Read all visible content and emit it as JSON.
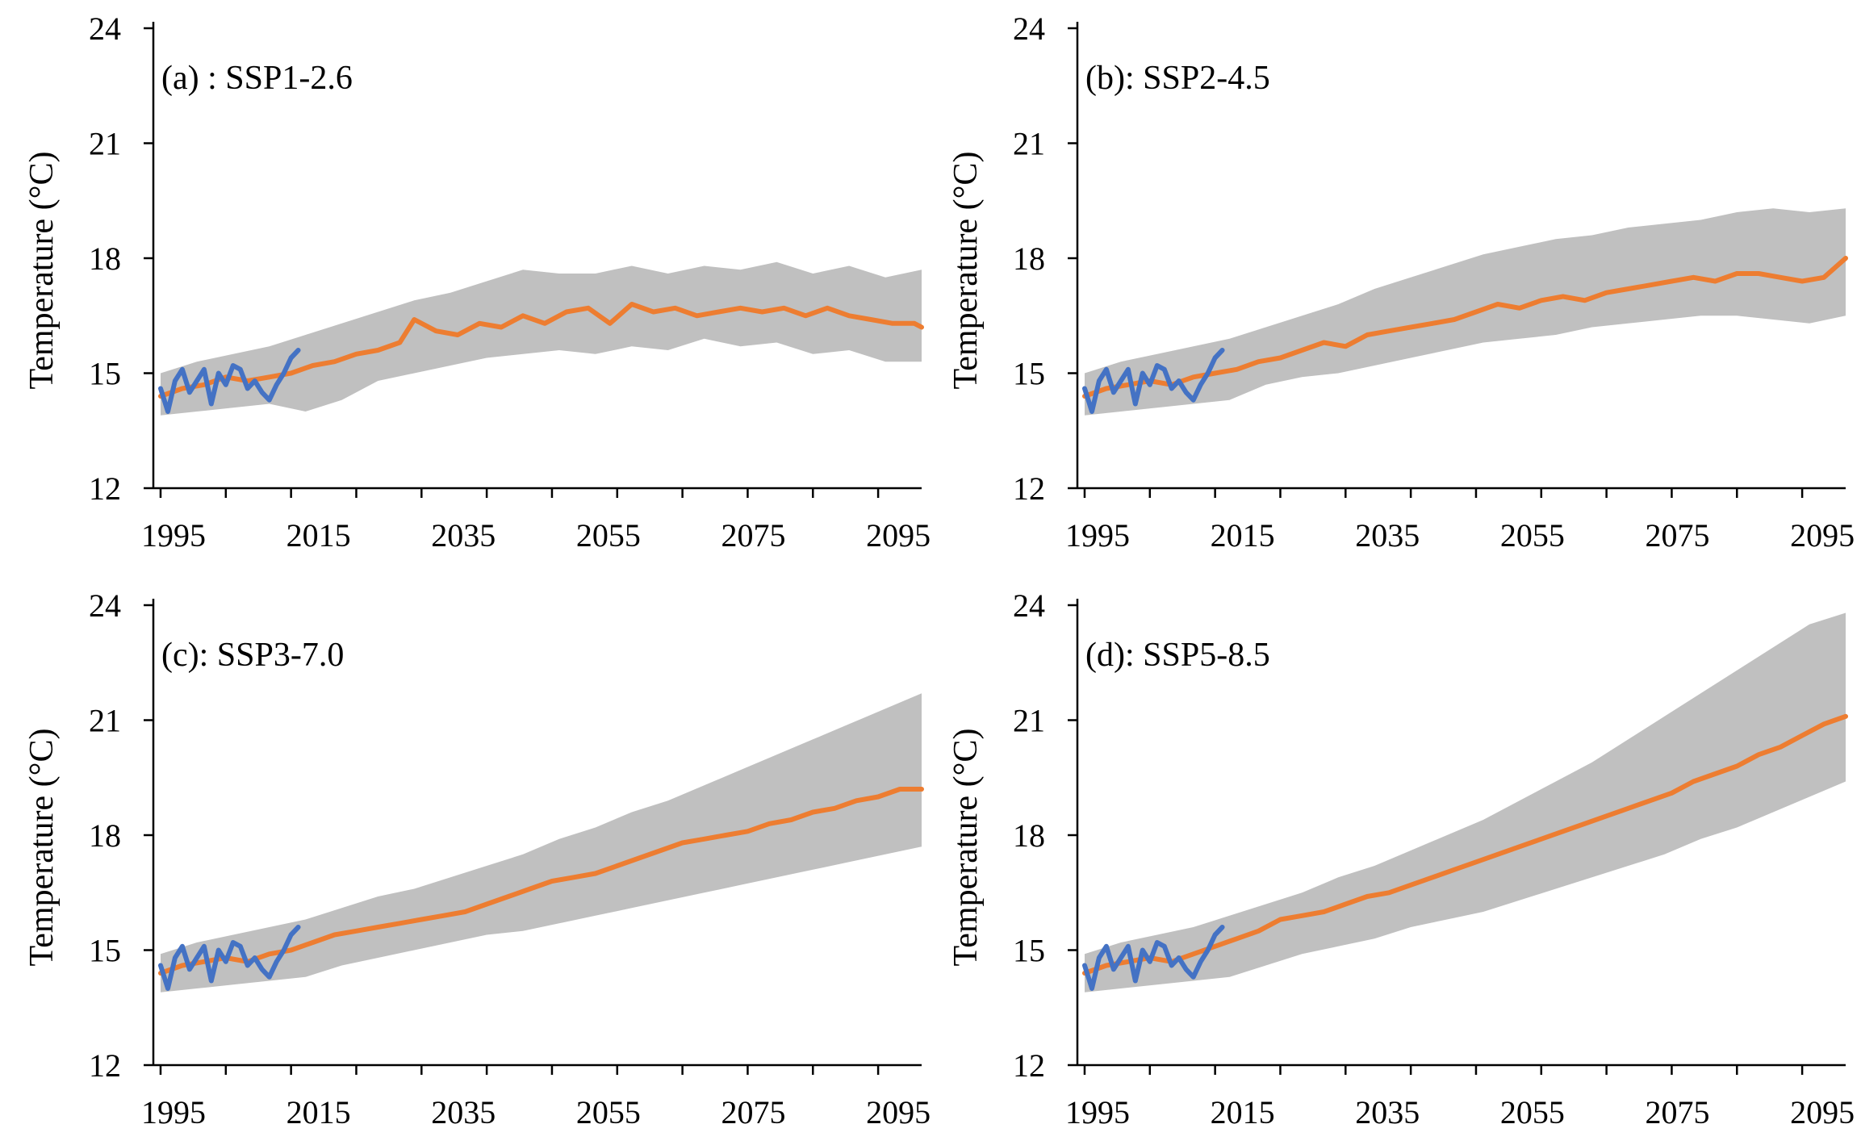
{
  "colors": {
    "band": "#c0c0c0",
    "projection": "#ed7d31",
    "observed": "#4472c4",
    "axis": "#000000"
  },
  "chart_data": [
    {
      "type": "line",
      "title": "(a) : SSP1-2.6",
      "xlabel": "",
      "ylabel": "Temperature (°C)",
      "xlim": [
        1994,
        2100
      ],
      "ylim": [
        12,
        24
      ],
      "xticks": [
        1995,
        2015,
        2035,
        2055,
        2075,
        2095
      ],
      "yticks": [
        12,
        15,
        18,
        21,
        24
      ],
      "grid": false,
      "series": [
        {
          "role": "band",
          "x": [
            1995,
            2000,
            2005,
            2010,
            2015,
            2020,
            2025,
            2030,
            2035,
            2040,
            2045,
            2050,
            2055,
            2060,
            2065,
            2070,
            2075,
            2080,
            2085,
            2090,
            2095,
            2100
          ],
          "upper": [
            15.0,
            15.3,
            15.5,
            15.7,
            16.0,
            16.3,
            16.6,
            16.9,
            17.1,
            17.4,
            17.7,
            17.6,
            17.6,
            17.8,
            17.6,
            17.8,
            17.7,
            17.9,
            17.6,
            17.8,
            17.5,
            17.7
          ],
          "lower": [
            13.9,
            14.0,
            14.1,
            14.2,
            14.0,
            14.3,
            14.8,
            15.0,
            15.2,
            15.4,
            15.5,
            15.6,
            15.5,
            15.7,
            15.6,
            15.9,
            15.7,
            15.8,
            15.5,
            15.6,
            15.3,
            15.3
          ]
        },
        {
          "role": "projection",
          "x": [
            1995,
            1998,
            2001,
            2004,
            2007,
            2010,
            2013,
            2016,
            2019,
            2022,
            2025,
            2028,
            2030,
            2033,
            2036,
            2039,
            2042,
            2045,
            2048,
            2051,
            2054,
            2057,
            2060,
            2063,
            2066,
            2069,
            2072,
            2075,
            2078,
            2081,
            2084,
            2087,
            2090,
            2093,
            2096,
            2099,
            2100
          ],
          "values": [
            14.4,
            14.6,
            14.7,
            14.9,
            14.8,
            14.9,
            15.0,
            15.2,
            15.3,
            15.5,
            15.6,
            15.8,
            16.4,
            16.1,
            16.0,
            16.3,
            16.2,
            16.5,
            16.3,
            16.6,
            16.7,
            16.3,
            16.8,
            16.6,
            16.7,
            16.5,
            16.6,
            16.7,
            16.6,
            16.7,
            16.5,
            16.7,
            16.5,
            16.4,
            16.3,
            16.3,
            16.2
          ]
        },
        {
          "role": "observed",
          "x": [
            1995,
            1996,
            1997,
            1998,
            1999,
            2000,
            2001,
            2002,
            2003,
            2004,
            2005,
            2006,
            2007,
            2008,
            2009,
            2010,
            2011,
            2012,
            2013,
            2014
          ],
          "values": [
            14.6,
            14.0,
            14.8,
            15.1,
            14.5,
            14.8,
            15.1,
            14.2,
            15.0,
            14.7,
            15.2,
            15.1,
            14.6,
            14.8,
            14.5,
            14.3,
            14.7,
            15.0,
            15.4,
            15.6
          ]
        }
      ]
    },
    {
      "type": "line",
      "title": "(b): SSP2-4.5",
      "xlabel": "",
      "ylabel": "Temperature (°C)",
      "xlim": [
        1994,
        2100
      ],
      "ylim": [
        12,
        24
      ],
      "xticks": [
        1995,
        2015,
        2035,
        2055,
        2075,
        2095
      ],
      "yticks": [
        12,
        15,
        18,
        21,
        24
      ],
      "grid": false,
      "series": [
        {
          "role": "band",
          "x": [
            1995,
            2000,
            2005,
            2010,
            2015,
            2020,
            2025,
            2030,
            2035,
            2040,
            2045,
            2050,
            2055,
            2060,
            2065,
            2070,
            2075,
            2080,
            2085,
            2090,
            2095,
            2100
          ],
          "upper": [
            15.0,
            15.3,
            15.5,
            15.7,
            15.9,
            16.2,
            16.5,
            16.8,
            17.2,
            17.5,
            17.8,
            18.1,
            18.3,
            18.5,
            18.6,
            18.8,
            18.9,
            19.0,
            19.2,
            19.3,
            19.2,
            19.3
          ],
          "lower": [
            13.9,
            14.0,
            14.1,
            14.2,
            14.3,
            14.7,
            14.9,
            15.0,
            15.2,
            15.4,
            15.6,
            15.8,
            15.9,
            16.0,
            16.2,
            16.3,
            16.4,
            16.5,
            16.5,
            16.4,
            16.3,
            16.5
          ]
        },
        {
          "role": "projection",
          "x": [
            1995,
            1998,
            2001,
            2004,
            2007,
            2010,
            2013,
            2016,
            2019,
            2022,
            2025,
            2028,
            2031,
            2034,
            2037,
            2040,
            2043,
            2046,
            2049,
            2052,
            2055,
            2058,
            2061,
            2064,
            2067,
            2070,
            2073,
            2076,
            2079,
            2082,
            2085,
            2088,
            2091,
            2094,
            2097,
            2100
          ],
          "values": [
            14.4,
            14.6,
            14.7,
            14.8,
            14.7,
            14.9,
            15.0,
            15.1,
            15.3,
            15.4,
            15.6,
            15.8,
            15.7,
            16.0,
            16.1,
            16.2,
            16.3,
            16.4,
            16.6,
            16.8,
            16.7,
            16.9,
            17.0,
            16.9,
            17.1,
            17.2,
            17.3,
            17.4,
            17.5,
            17.4,
            17.6,
            17.6,
            17.5,
            17.4,
            17.5,
            18.0
          ]
        },
        {
          "role": "observed",
          "x": [
            1995,
            1996,
            1997,
            1998,
            1999,
            2000,
            2001,
            2002,
            2003,
            2004,
            2005,
            2006,
            2007,
            2008,
            2009,
            2010,
            2011,
            2012,
            2013,
            2014
          ],
          "values": [
            14.6,
            14.0,
            14.8,
            15.1,
            14.5,
            14.8,
            15.1,
            14.2,
            15.0,
            14.7,
            15.2,
            15.1,
            14.6,
            14.8,
            14.5,
            14.3,
            14.7,
            15.0,
            15.4,
            15.6
          ]
        }
      ]
    },
    {
      "type": "line",
      "title": "(c): SSP3-7.0",
      "xlabel": "",
      "ylabel": "Temperature (°C)",
      "xlim": [
        1994,
        2100
      ],
      "ylim": [
        12,
        24
      ],
      "xticks": [
        1995,
        2015,
        2035,
        2055,
        2075,
        2095
      ],
      "yticks": [
        12,
        15,
        18,
        21,
        24
      ],
      "grid": false,
      "series": [
        {
          "role": "band",
          "x": [
            1995,
            2000,
            2005,
            2010,
            2015,
            2020,
            2025,
            2030,
            2035,
            2040,
            2045,
            2050,
            2055,
            2060,
            2065,
            2070,
            2075,
            2080,
            2085,
            2090,
            2095,
            2100
          ],
          "upper": [
            14.9,
            15.2,
            15.4,
            15.6,
            15.8,
            16.1,
            16.4,
            16.6,
            16.9,
            17.2,
            17.5,
            17.9,
            18.2,
            18.6,
            18.9,
            19.3,
            19.7,
            20.1,
            20.5,
            20.9,
            21.3,
            21.7
          ],
          "lower": [
            13.9,
            14.0,
            14.1,
            14.2,
            14.3,
            14.6,
            14.8,
            15.0,
            15.2,
            15.4,
            15.5,
            15.7,
            15.9,
            16.1,
            16.3,
            16.5,
            16.7,
            16.9,
            17.1,
            17.3,
            17.5,
            17.7
          ]
        },
        {
          "role": "projection",
          "x": [
            1995,
            1998,
            2001,
            2004,
            2007,
            2010,
            2013,
            2016,
            2019,
            2022,
            2025,
            2028,
            2031,
            2034,
            2037,
            2040,
            2043,
            2046,
            2049,
            2052,
            2055,
            2058,
            2061,
            2064,
            2067,
            2070,
            2073,
            2076,
            2079,
            2082,
            2085,
            2088,
            2091,
            2094,
            2097,
            2100
          ],
          "values": [
            14.4,
            14.6,
            14.7,
            14.8,
            14.7,
            14.9,
            15.0,
            15.2,
            15.4,
            15.5,
            15.6,
            15.7,
            15.8,
            15.9,
            16.0,
            16.2,
            16.4,
            16.6,
            16.8,
            16.9,
            17.0,
            17.2,
            17.4,
            17.6,
            17.8,
            17.9,
            18.0,
            18.1,
            18.3,
            18.4,
            18.6,
            18.7,
            18.9,
            19.0,
            19.2,
            19.2
          ]
        },
        {
          "role": "observed",
          "x": [
            1995,
            1996,
            1997,
            1998,
            1999,
            2000,
            2001,
            2002,
            2003,
            2004,
            2005,
            2006,
            2007,
            2008,
            2009,
            2010,
            2011,
            2012,
            2013,
            2014
          ],
          "values": [
            14.6,
            14.0,
            14.8,
            15.1,
            14.5,
            14.8,
            15.1,
            14.2,
            15.0,
            14.7,
            15.2,
            15.1,
            14.6,
            14.8,
            14.5,
            14.3,
            14.7,
            15.0,
            15.4,
            15.6
          ]
        }
      ]
    },
    {
      "type": "line",
      "title": "(d): SSP5-8.5",
      "xlabel": "",
      "ylabel": "Temperature (°C)",
      "xlim": [
        1994,
        2100
      ],
      "ylim": [
        12,
        24
      ],
      "xticks": [
        1995,
        2015,
        2035,
        2055,
        2075,
        2095
      ],
      "yticks": [
        12,
        15,
        18,
        21,
        24
      ],
      "grid": false,
      "series": [
        {
          "role": "band",
          "x": [
            1995,
            2000,
            2005,
            2010,
            2015,
            2020,
            2025,
            2030,
            2035,
            2040,
            2045,
            2050,
            2055,
            2060,
            2065,
            2070,
            2075,
            2080,
            2085,
            2090,
            2095,
            2100
          ],
          "upper": [
            14.9,
            15.2,
            15.4,
            15.6,
            15.9,
            16.2,
            16.5,
            16.9,
            17.2,
            17.6,
            18.0,
            18.4,
            18.9,
            19.4,
            19.9,
            20.5,
            21.1,
            21.7,
            22.3,
            22.9,
            23.5,
            23.8
          ],
          "lower": [
            13.9,
            14.0,
            14.1,
            14.2,
            14.3,
            14.6,
            14.9,
            15.1,
            15.3,
            15.6,
            15.8,
            16.0,
            16.3,
            16.6,
            16.9,
            17.2,
            17.5,
            17.9,
            18.2,
            18.6,
            19.0,
            19.4
          ]
        },
        {
          "role": "projection",
          "x": [
            1995,
            1998,
            2001,
            2004,
            2007,
            2010,
            2013,
            2016,
            2019,
            2022,
            2025,
            2028,
            2031,
            2034,
            2037,
            2040,
            2043,
            2046,
            2049,
            2052,
            2055,
            2058,
            2061,
            2064,
            2067,
            2070,
            2073,
            2076,
            2079,
            2082,
            2085,
            2088,
            2091,
            2094,
            2097,
            2100
          ],
          "values": [
            14.4,
            14.6,
            14.7,
            14.8,
            14.7,
            14.9,
            15.1,
            15.3,
            15.5,
            15.8,
            15.9,
            16.0,
            16.2,
            16.4,
            16.5,
            16.7,
            16.9,
            17.1,
            17.3,
            17.5,
            17.7,
            17.9,
            18.1,
            18.3,
            18.5,
            18.7,
            18.9,
            19.1,
            19.4,
            19.6,
            19.8,
            20.1,
            20.3,
            20.6,
            20.9,
            21.1
          ]
        },
        {
          "role": "observed",
          "x": [
            1995,
            1996,
            1997,
            1998,
            1999,
            2000,
            2001,
            2002,
            2003,
            2004,
            2005,
            2006,
            2007,
            2008,
            2009,
            2010,
            2011,
            2012,
            2013,
            2014
          ],
          "values": [
            14.6,
            14.0,
            14.8,
            15.1,
            14.5,
            14.8,
            15.1,
            14.2,
            15.0,
            14.7,
            15.2,
            15.1,
            14.6,
            14.8,
            14.5,
            14.3,
            14.7,
            15.0,
            15.4,
            15.6
          ]
        }
      ]
    }
  ]
}
